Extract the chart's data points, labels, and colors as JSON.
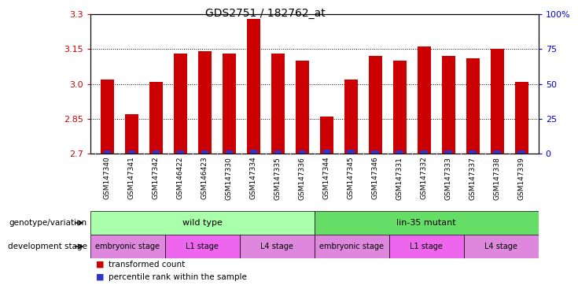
{
  "title": "GDS2751 / 182762_at",
  "samples": [
    "GSM147340",
    "GSM147341",
    "GSM147342",
    "GSM146422",
    "GSM146423",
    "GSM147330",
    "GSM147334",
    "GSM147335",
    "GSM147336",
    "GSM147344",
    "GSM147345",
    "GSM147346",
    "GSM147331",
    "GSM147332",
    "GSM147333",
    "GSM147337",
    "GSM147338",
    "GSM147339"
  ],
  "transformed_count": [
    3.02,
    2.87,
    3.01,
    3.13,
    3.14,
    3.13,
    3.28,
    3.13,
    3.1,
    2.86,
    3.02,
    3.12,
    3.1,
    3.16,
    3.12,
    3.11,
    3.15,
    3.01
  ],
  "percentile_rank": [
    2,
    2,
    2,
    2,
    2,
    2,
    3,
    2,
    2,
    3,
    3,
    2,
    2,
    2,
    2,
    2,
    2,
    2
  ],
  "ymin": 2.7,
  "ymax": 3.3,
  "yticks": [
    2.7,
    2.85,
    3.0,
    3.15,
    3.3
  ],
  "right_yticks": [
    0,
    25,
    50,
    75,
    100
  ],
  "bar_color": "#cc0000",
  "percentile_color": "#3333cc",
  "bar_width": 0.55,
  "xtick_bg": "#d0d0d0",
  "genotype_groups": [
    {
      "label": "wild type",
      "start": 0,
      "end": 9,
      "color": "#aaffaa"
    },
    {
      "label": "lin-35 mutant",
      "start": 9,
      "end": 18,
      "color": "#66dd66"
    }
  ],
  "dev_stage_groups": [
    {
      "label": "embryonic stage",
      "start": 0,
      "end": 3,
      "color": "#dd88dd"
    },
    {
      "label": "L1 stage",
      "start": 3,
      "end": 6,
      "color": "#ee66ee"
    },
    {
      "label": "L4 stage",
      "start": 6,
      "end": 9,
      "color": "#dd88dd"
    },
    {
      "label": "embryonic stage",
      "start": 9,
      "end": 12,
      "color": "#dd88dd"
    },
    {
      "label": "L1 stage",
      "start": 12,
      "end": 15,
      "color": "#ee66ee"
    },
    {
      "label": "L4 stage",
      "start": 15,
      "end": 18,
      "color": "#dd88dd"
    }
  ],
  "genotype_label": "genotype/variation",
  "devstage_label": "development stage",
  "legend_items": [
    {
      "label": "transformed count",
      "color": "#cc0000"
    },
    {
      "label": "percentile rank within the sample",
      "color": "#3333cc"
    }
  ],
  "background_color": "#ffffff"
}
